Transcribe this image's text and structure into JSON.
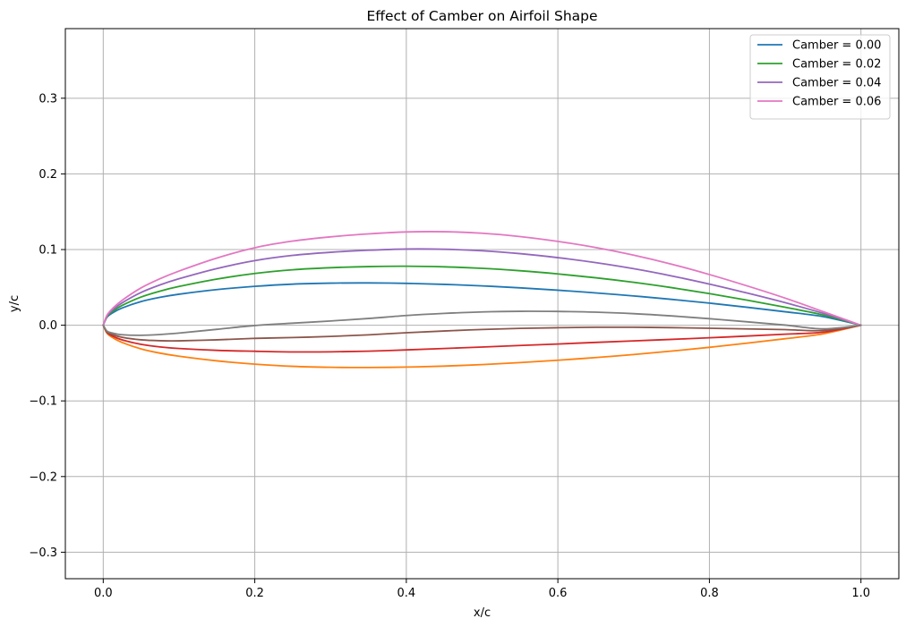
{
  "chart_data": {
    "type": "line",
    "title": "Effect of Camber on Airfoil Shape",
    "xlabel": "x/c",
    "ylabel": "y/c",
    "xlim": [
      -0.05,
      1.05
    ],
    "ylim": [
      -0.335,
      0.392
    ],
    "xticks": [
      0.0,
      0.2,
      0.4,
      0.6,
      0.8,
      1.0
    ],
    "xtick_labels": [
      "0.0",
      "0.2",
      "0.4",
      "0.6",
      "0.8",
      "1.0"
    ],
    "yticks": [
      -0.3,
      -0.2,
      -0.1,
      0.0,
      0.1,
      0.2,
      0.3
    ],
    "ytick_labels": [
      "−0.3",
      "−0.2",
      "−0.1",
      "0.0",
      "0.1",
      "0.2",
      "0.3"
    ],
    "grid": true,
    "legend_position": "top-right",
    "series": [
      {
        "name": "Camber = 0.00",
        "surface": "upper",
        "color": "#1f77b4",
        "x": [
          0.0,
          0.005,
          0.0125,
          0.025,
          0.05,
          0.075,
          0.1,
          0.15,
          0.2,
          0.25,
          0.3,
          0.35,
          0.4,
          0.45,
          0.5,
          0.55,
          0.6,
          0.65,
          0.7,
          0.75,
          0.8,
          0.85,
          0.9,
          0.95,
          1.0
        ],
        "y": [
          0.0,
          0.0106,
          0.0164,
          0.0228,
          0.0313,
          0.0369,
          0.041,
          0.0471,
          0.0514,
          0.0543,
          0.0556,
          0.0559,
          0.0553,
          0.054,
          0.052,
          0.0494,
          0.0463,
          0.0427,
          0.0387,
          0.0342,
          0.0292,
          0.0237,
          0.0178,
          0.0114,
          0.0
        ]
      },
      {
        "name": "",
        "surface": "lower",
        "color": "#ff7f0e",
        "x": [
          0.0,
          0.005,
          0.0125,
          0.025,
          0.05,
          0.075,
          0.1,
          0.15,
          0.2,
          0.25,
          0.3,
          0.35,
          0.4,
          0.45,
          0.5,
          0.55,
          0.6,
          0.65,
          0.7,
          0.75,
          0.8,
          0.85,
          0.9,
          0.95,
          1.0
        ],
        "y": [
          0.0,
          -0.0106,
          -0.0164,
          -0.0228,
          -0.0313,
          -0.0369,
          -0.041,
          -0.0471,
          -0.0514,
          -0.0543,
          -0.0556,
          -0.0559,
          -0.0553,
          -0.054,
          -0.052,
          -0.0494,
          -0.0463,
          -0.0427,
          -0.0387,
          -0.0342,
          -0.0292,
          -0.0237,
          -0.0178,
          -0.0114,
          0.0
        ]
      },
      {
        "name": "Camber = 0.02",
        "surface": "upper",
        "color": "#2ca02c",
        "x": [
          0.0,
          0.005,
          0.0125,
          0.025,
          0.05,
          0.075,
          0.1,
          0.15,
          0.2,
          0.25,
          0.3,
          0.35,
          0.4,
          0.45,
          0.5,
          0.55,
          0.6,
          0.65,
          0.7,
          0.75,
          0.8,
          0.85,
          0.9,
          0.95,
          1.0
        ],
        "y": [
          0.0,
          0.0115,
          0.0184,
          0.0262,
          0.0373,
          0.0451,
          0.0512,
          0.061,
          0.0684,
          0.0733,
          0.076,
          0.0775,
          0.078,
          0.0772,
          0.0752,
          0.072,
          0.0678,
          0.0627,
          0.0567,
          0.0497,
          0.0418,
          0.0331,
          0.0238,
          0.0136,
          0.0
        ]
      },
      {
        "name": "",
        "surface": "lower",
        "color": "#d62728",
        "x": [
          0.0,
          0.005,
          0.0125,
          0.025,
          0.05,
          0.075,
          0.1,
          0.15,
          0.2,
          0.25,
          0.3,
          0.35,
          0.4,
          0.45,
          0.5,
          0.55,
          0.6,
          0.65,
          0.7,
          0.75,
          0.8,
          0.85,
          0.9,
          0.95,
          1.0
        ],
        "y": [
          0.0,
          -0.0097,
          -0.0144,
          -0.0194,
          -0.0253,
          -0.0287,
          -0.0308,
          -0.0332,
          -0.0344,
          -0.0353,
          -0.0352,
          -0.0343,
          -0.0326,
          -0.0308,
          -0.0288,
          -0.0268,
          -0.0248,
          -0.0227,
          -0.0207,
          -0.0187,
          -0.0166,
          -0.0143,
          -0.0118,
          -0.0092,
          0.0
        ]
      },
      {
        "name": "Camber = 0.04",
        "surface": "upper",
        "color": "#9467bd",
        "x": [
          0.0,
          0.005,
          0.0125,
          0.025,
          0.05,
          0.075,
          0.1,
          0.15,
          0.2,
          0.25,
          0.3,
          0.35,
          0.4,
          0.45,
          0.5,
          0.55,
          0.6,
          0.65,
          0.7,
          0.75,
          0.8,
          0.85,
          0.9,
          0.95,
          1.0
        ],
        "y": [
          0.0,
          0.0124,
          0.0204,
          0.0296,
          0.0433,
          0.0533,
          0.0614,
          0.0749,
          0.0854,
          0.0923,
          0.0964,
          0.0991,
          0.1007,
          0.1004,
          0.0984,
          0.0946,
          0.0893,
          0.0827,
          0.0747,
          0.0652,
          0.0544,
          0.0425,
          0.0298,
          0.0158,
          0.0
        ]
      },
      {
        "name": "",
        "surface": "lower",
        "color": "#8c564b",
        "x": [
          0.0,
          0.005,
          0.0125,
          0.025,
          0.05,
          0.075,
          0.1,
          0.15,
          0.2,
          0.25,
          0.3,
          0.35,
          0.4,
          0.45,
          0.5,
          0.55,
          0.6,
          0.65,
          0.7,
          0.75,
          0.8,
          0.85,
          0.9,
          0.95,
          1.0
        ],
        "y": [
          0.0,
          -0.0088,
          -0.0124,
          -0.016,
          -0.0193,
          -0.0205,
          -0.0206,
          -0.0193,
          -0.0174,
          -0.0163,
          -0.0148,
          -0.0127,
          -0.0099,
          -0.0076,
          -0.0056,
          -0.0042,
          -0.0033,
          -0.0027,
          -0.0027,
          -0.0032,
          -0.004,
          -0.0049,
          -0.0058,
          -0.007,
          0.0
        ]
      },
      {
        "name": "Camber = 0.06",
        "surface": "upper",
        "color": "#e377c2",
        "x": [
          0.0,
          0.005,
          0.0125,
          0.025,
          0.05,
          0.075,
          0.1,
          0.15,
          0.2,
          0.25,
          0.3,
          0.35,
          0.4,
          0.45,
          0.5,
          0.55,
          0.6,
          0.65,
          0.7,
          0.75,
          0.8,
          0.85,
          0.9,
          0.95,
          1.0
        ],
        "y": [
          0.0,
          0.0134,
          0.0223,
          0.033,
          0.0494,
          0.0615,
          0.0716,
          0.0888,
          0.1024,
          0.1112,
          0.1168,
          0.1207,
          0.1233,
          0.1236,
          0.1216,
          0.1172,
          0.1108,
          0.1027,
          0.0926,
          0.0807,
          0.067,
          0.0519,
          0.0358,
          0.018,
          0.0
        ]
      },
      {
        "name": "",
        "surface": "lower",
        "color": "#7f7f7f",
        "x": [
          0.0,
          0.005,
          0.0125,
          0.025,
          0.05,
          0.075,
          0.1,
          0.15,
          0.2,
          0.25,
          0.3,
          0.35,
          0.4,
          0.45,
          0.5,
          0.55,
          0.6,
          0.65,
          0.7,
          0.75,
          0.8,
          0.85,
          0.9,
          0.95,
          1.0
        ],
        "y": [
          0.0,
          -0.0078,
          -0.0104,
          -0.0126,
          -0.0133,
          -0.0123,
          -0.0104,
          -0.0054,
          -0.0004,
          0.0027,
          0.0056,
          0.0089,
          0.0128,
          0.0156,
          0.0176,
          0.0184,
          0.0182,
          0.0173,
          0.0153,
          0.0123,
          0.0086,
          0.0045,
          0.0002,
          -0.0048,
          0.0
        ]
      }
    ]
  }
}
